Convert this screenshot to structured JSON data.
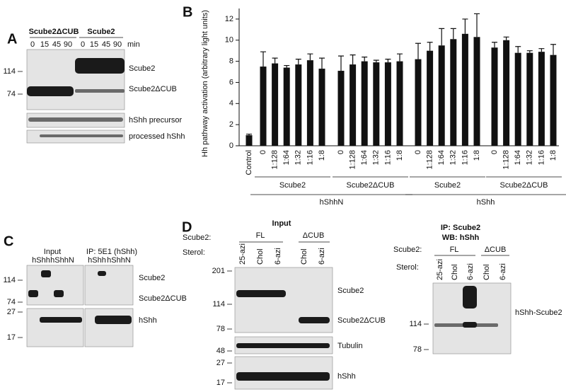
{
  "panels": {
    "A": {
      "label": "A",
      "groups": [
        "Scube2ΔCUB",
        "Scube2"
      ],
      "times": [
        "0",
        "15",
        "45",
        "90",
        "0",
        "15",
        "45",
        "90"
      ],
      "unit": "min",
      "markers": [
        "114",
        "74"
      ],
      "bands": [
        "Scube2",
        "Scube2ΔCUB",
        "hShh precursor",
        "processed hShh"
      ]
    },
    "C": {
      "label": "C",
      "headers": [
        "Input",
        "IP: 5E1 (hShh)"
      ],
      "lanes": [
        "hShh",
        "hShhN",
        "hShh",
        "hShhN"
      ],
      "markers": [
        "114",
        "74",
        "27",
        "17"
      ],
      "bands": [
        "Scube2",
        "Scube2ΔCUB",
        "hShh"
      ]
    },
    "D": {
      "label": "D",
      "input": {
        "title": "Input",
        "row_labels": [
          "Scube2:",
          "Sterol:"
        ],
        "groups": [
          "FL",
          "ΔCUB"
        ],
        "lanes": [
          "25-azi",
          "Chol",
          "6-azi",
          "Chol",
          "6-azi"
        ],
        "markers": [
          "201",
          "114",
          "78",
          "48",
          "27",
          "17"
        ],
        "bands": [
          "Scube2",
          "Scube2ΔCUB",
          "Tubulin",
          "hShh"
        ]
      },
      "ip": {
        "title": [
          "IP: Scube2",
          "WB: hShh"
        ],
        "row_labels": [
          "Scube2:",
          "Sterol:"
        ],
        "groups": [
          "FL",
          "ΔCUB"
        ],
        "lanes": [
          "25-azi",
          "Chol",
          "6-azi",
          "Chol",
          "6-azi"
        ],
        "markers": [
          "114",
          "78"
        ],
        "bands": [
          "hShh-Scube2"
        ]
      }
    }
  },
  "chart_data": {
    "type": "bar",
    "label": "B",
    "y_label": "Hh pathway activation (arbitrary light units)",
    "categories": [
      "Control",
      "0",
      "1:128",
      "1:64",
      "1:32",
      "1:16",
      "1:8",
      "0",
      "1:128",
      "1:64",
      "1:32",
      "1:16",
      "1:8",
      "0",
      "1:128",
      "1:64",
      "1:32",
      "1:16",
      "1:8",
      "0",
      "1:128",
      "1:64",
      "1:32",
      "1:16",
      "1:8"
    ],
    "groups": [
      "Scube2",
      "Scube2ΔCUB",
      "Scube2",
      "Scube2ΔCUB"
    ],
    "supergroups": [
      "hShhN",
      "hShh"
    ],
    "series": [
      {
        "color": "#111111",
        "values": [
          1.0,
          7.5,
          7.8,
          7.4,
          7.7,
          8.1,
          7.3,
          7.1,
          7.7,
          8.0,
          7.9,
          7.9,
          8.0,
          8.2,
          9.0,
          9.5,
          10.1,
          10.6,
          10.3,
          9.3,
          10.0,
          8.8,
          8.8,
          8.9,
          8.6
        ],
        "errors": [
          0.1,
          1.4,
          0.5,
          0.2,
          0.5,
          0.6,
          1.0,
          1.4,
          0.9,
          0.4,
          0.2,
          0.3,
          0.7,
          1.5,
          0.8,
          1.6,
          1.0,
          1.4,
          2.2,
          0.5,
          0.3,
          0.6,
          0.2,
          0.3,
          1.0
        ]
      }
    ],
    "ylim": [
      0,
      13
    ],
    "yticks": [
      0,
      2,
      4,
      6,
      8,
      10,
      12
    ]
  }
}
